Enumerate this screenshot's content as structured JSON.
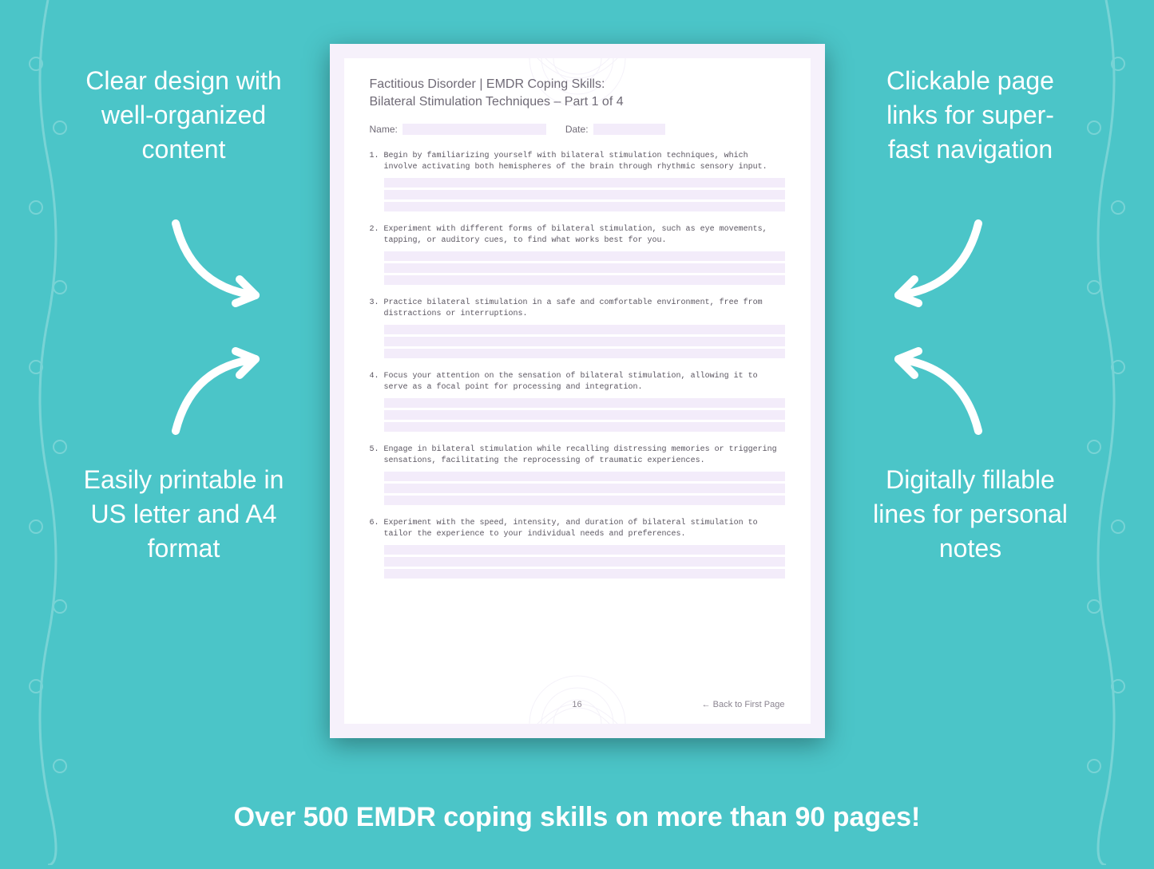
{
  "colors": {
    "background": "#4bc5c8",
    "callout_text": "#ffffff",
    "arrow_stroke": "#ffffff",
    "page_outer": "#f6f1fb",
    "page_inner": "#ffffff",
    "doc_text": "#6f6a76",
    "fill_line": "#f3ecfa",
    "item_text": "#5a5560",
    "footer_text": "#8a8490"
  },
  "callouts": {
    "top_left": "Clear design with well-organized content",
    "top_right": "Clickable page links for super-fast navigation",
    "bottom_left": "Easily printable in US letter and A4 format",
    "bottom_right": "Digitally fillable lines for personal notes"
  },
  "footer_banner": "Over 500 EMDR coping skills on more than 90 pages!",
  "document": {
    "title": "Factitious Disorder | EMDR Coping Skills:",
    "subtitle": "Bilateral Stimulation Techniques – Part 1 of 4",
    "name_label": "Name:",
    "date_label": "Date:",
    "items": [
      {
        "num": "1.",
        "text": "Begin by familiarizing yourself with bilateral stimulation techniques, which involve activating both hemispheres of the brain through rhythmic sensory input."
      },
      {
        "num": "2.",
        "text": "Experiment with different forms of bilateral stimulation, such as eye movements, tapping, or auditory cues, to find what works best for you."
      },
      {
        "num": "3.",
        "text": "Practice bilateral stimulation in a safe and comfortable environment, free from distractions or interruptions."
      },
      {
        "num": "4.",
        "text": "Focus your attention on the sensation of bilateral stimulation, allowing it to serve as a focal point for processing and integration."
      },
      {
        "num": "5.",
        "text": "Engage in bilateral stimulation while recalling distressing memories or triggering sensations, facilitating the reprocessing of traumatic experiences."
      },
      {
        "num": "6.",
        "text": "Experiment with the speed, intensity, and duration of bilateral stimulation to tailor the experience to your individual needs and preferences."
      }
    ],
    "fill_lines_per_item": 3,
    "page_number": "16",
    "back_link": "← Back to First Page"
  }
}
